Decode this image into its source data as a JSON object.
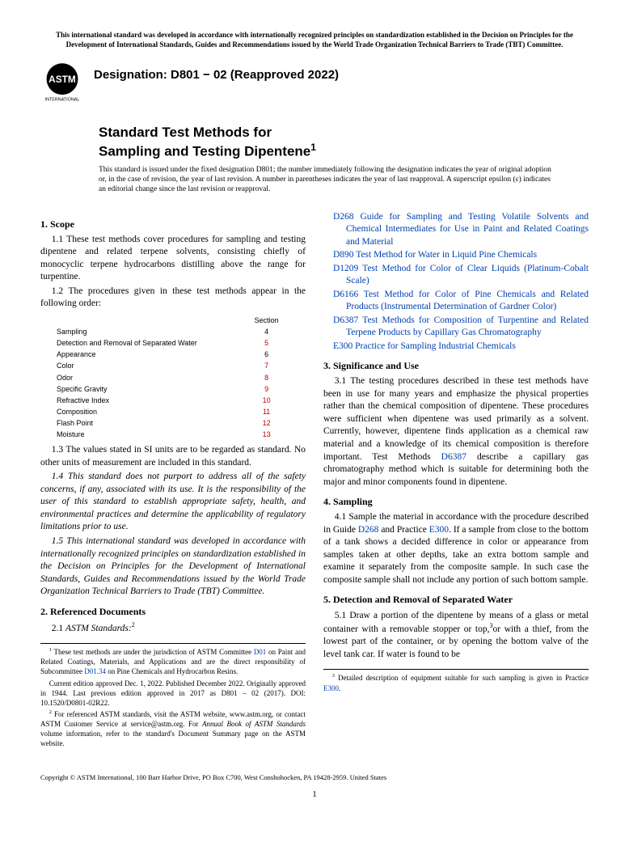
{
  "top_note": "This international standard was developed in accordance with internationally recognized principles on standardization established in the Decision on Principles for the Development of International Standards, Guides and Recommendations issued by the World Trade Organization Technical Barriers to Trade (TBT) Committee.",
  "logo_label": "INTERNATIONAL",
  "designation": "Designation: D801 − 02 (Reapproved 2022)",
  "title_line1": "Standard Test Methods for",
  "title_line2": "Sampling and Testing Dipentene",
  "title_sup": "1",
  "issuance": "This standard is issued under the fixed designation D801; the number immediately following the designation indicates the year of original adoption or, in the case of revision, the year of last revision. A number in parentheses indicates the year of last reapproval. A superscript epsilon (ε) indicates an editorial change since the last revision or reapproval.",
  "s1_head": "1. Scope",
  "s1_1": "1.1 These test methods cover procedures for sampling and testing dipentene and related terpene solvents, consisting chiefly of monocyclic terpene hydrocarbons distilling above the range for turpentine.",
  "s1_2": "1.2  The procedures given in these test methods appear in the following order:",
  "proc_header": "Section",
  "proc": [
    {
      "n": "Sampling",
      "s": "4",
      "red": false
    },
    {
      "n": "Detection and Removal of Separated Water",
      "s": "5",
      "red": true
    },
    {
      "n": "Appearance",
      "s": "6",
      "red": false
    },
    {
      "n": "Color",
      "s": "7",
      "red": true
    },
    {
      "n": "Odor",
      "s": "8",
      "red": true
    },
    {
      "n": "Specific Gravity",
      "s": "9",
      "red": true
    },
    {
      "n": "Refractive Index",
      "s": "10",
      "red": true
    },
    {
      "n": "Composition",
      "s": "11",
      "red": true
    },
    {
      "n": "Flash Point",
      "s": "12",
      "red": true
    },
    {
      "n": "Moisture",
      "s": "13",
      "red": true
    }
  ],
  "s1_3": "1.3 The values stated in SI units are to be regarded as standard. No other units of measurement are included in this standard.",
  "s1_4": "1.4 This standard does not purport to address all of the safety concerns, if any, associated with its use. It is the responsibility of the user of this standard to establish appropriate safety, health, and environmental practices and determine the applicability of regulatory limitations prior to use.",
  "s1_5": "1.5 This international standard was developed in accordance with internationally recognized principles on standardization established in the Decision on Principles for the Development of International Standards, Guides and Recommendations issued by the World Trade Organization Technical Barriers to Trade (TBT) Committee.",
  "s2_head": "2. Referenced Documents",
  "s2_1_lead": "2.1 ",
  "s2_1_ital": "ASTM Standards:",
  "s2_1_sup": "2",
  "fn1a": " These test methods are under the jurisdiction of ASTM Committee ",
  "fn1b": " on Paint and Related Coatings, Materials, and Applications and are the direct responsibility of Subcommittee ",
  "fn1c": " on Pine Chemicals and Hydrocarbon Resins.",
  "fn1_d01": "D01",
  "fn1_d0134": "D01.34",
  "fn1_p2": "Current edition approved Dec. 1, 2022. Published December 2022. Originally approved in 1944. Last previous edition approved in 2017 as D801 – 02 (2017). DOI: 10.1520/D0801-02R22.",
  "fn2_a": " For referenced ASTM standards, visit the ASTM website, www.astm.org, or contact ASTM Customer Service at service@astm.org. For ",
  "fn2_ital": "Annual Book of ASTM Standards",
  "fn2_b": " volume information, refer to the standard's Document Summary page on the ASTM website.",
  "refs": [
    {
      "code": "D268",
      "title": "Guide for Sampling and Testing Volatile Solvents and Chemical Intermediates for Use in Paint and Related Coatings and Material"
    },
    {
      "code": "D890",
      "title": "Test Method for Water in Liquid Pine Chemicals"
    },
    {
      "code": "D1209",
      "title": "Test Method for Color of Clear Liquids (Platinum-Cobalt Scale)"
    },
    {
      "code": "D6166",
      "title": "Test Method for Color of Pine Chemicals and Related Products (Instrumental Determination of Gardner Color)"
    },
    {
      "code": "D6387",
      "title": "Test Methods for Composition of Turpentine and Related Terpene Products by Capillary Gas Chromatography"
    },
    {
      "code": "E300",
      "title": "Practice for Sampling Industrial Chemicals"
    }
  ],
  "s3_head": "3. Significance and Use",
  "s3_1a": "3.1 The testing procedures described in these test methods have been in use for many years and emphasize the physical properties rather than the chemical composition of dipentene. These procedures were sufficient when dipentene was used primarily as a solvent. Currently, however, dipentene finds application as a chemical raw material and a knowledge of its chemical composition is therefore important. Test Methods ",
  "s3_1_link": "D6387",
  "s3_1b": " describe a capillary gas chromatography method which is suitable for determining both the major and minor components found in dipentene.",
  "s4_head": "4. Sampling",
  "s4_1a": "4.1  Sample the material in accordance with the procedure described in Guide ",
  "s4_1_l1": "D268",
  "s4_1_mid": " and Practice ",
  "s4_1_l2": "E300",
  "s4_1b": ". If a sample from close to the bottom of a tank shows a decided difference in color or appearance from samples taken at other depths, take an extra bottom sample and examine it separately from the composite sample. In such case the composite sample shall not include any portion of such bottom sample.",
  "s5_head": "5. Detection and Removal of Separated Water",
  "s5_1a": "5.1  Draw a portion of the dipentene by means of a glass or metal container with a removable stopper or top,",
  "s5_1_sup": "3",
  "s5_1b": "or with a thief, from the lowest part of the container, or by opening the bottom valve of the level tank car. If water is found to be",
  "fn3_a": " Detailed description of equipment suitable for such sampling is given in Practice ",
  "fn3_link": "E300",
  "fn3_b": ".",
  "copyright": "Copyright © ASTM International, 100 Barr Harbor Drive, PO Box C700, West Conshohocken, PA 19428-2959. United States",
  "pagenum": "1"
}
